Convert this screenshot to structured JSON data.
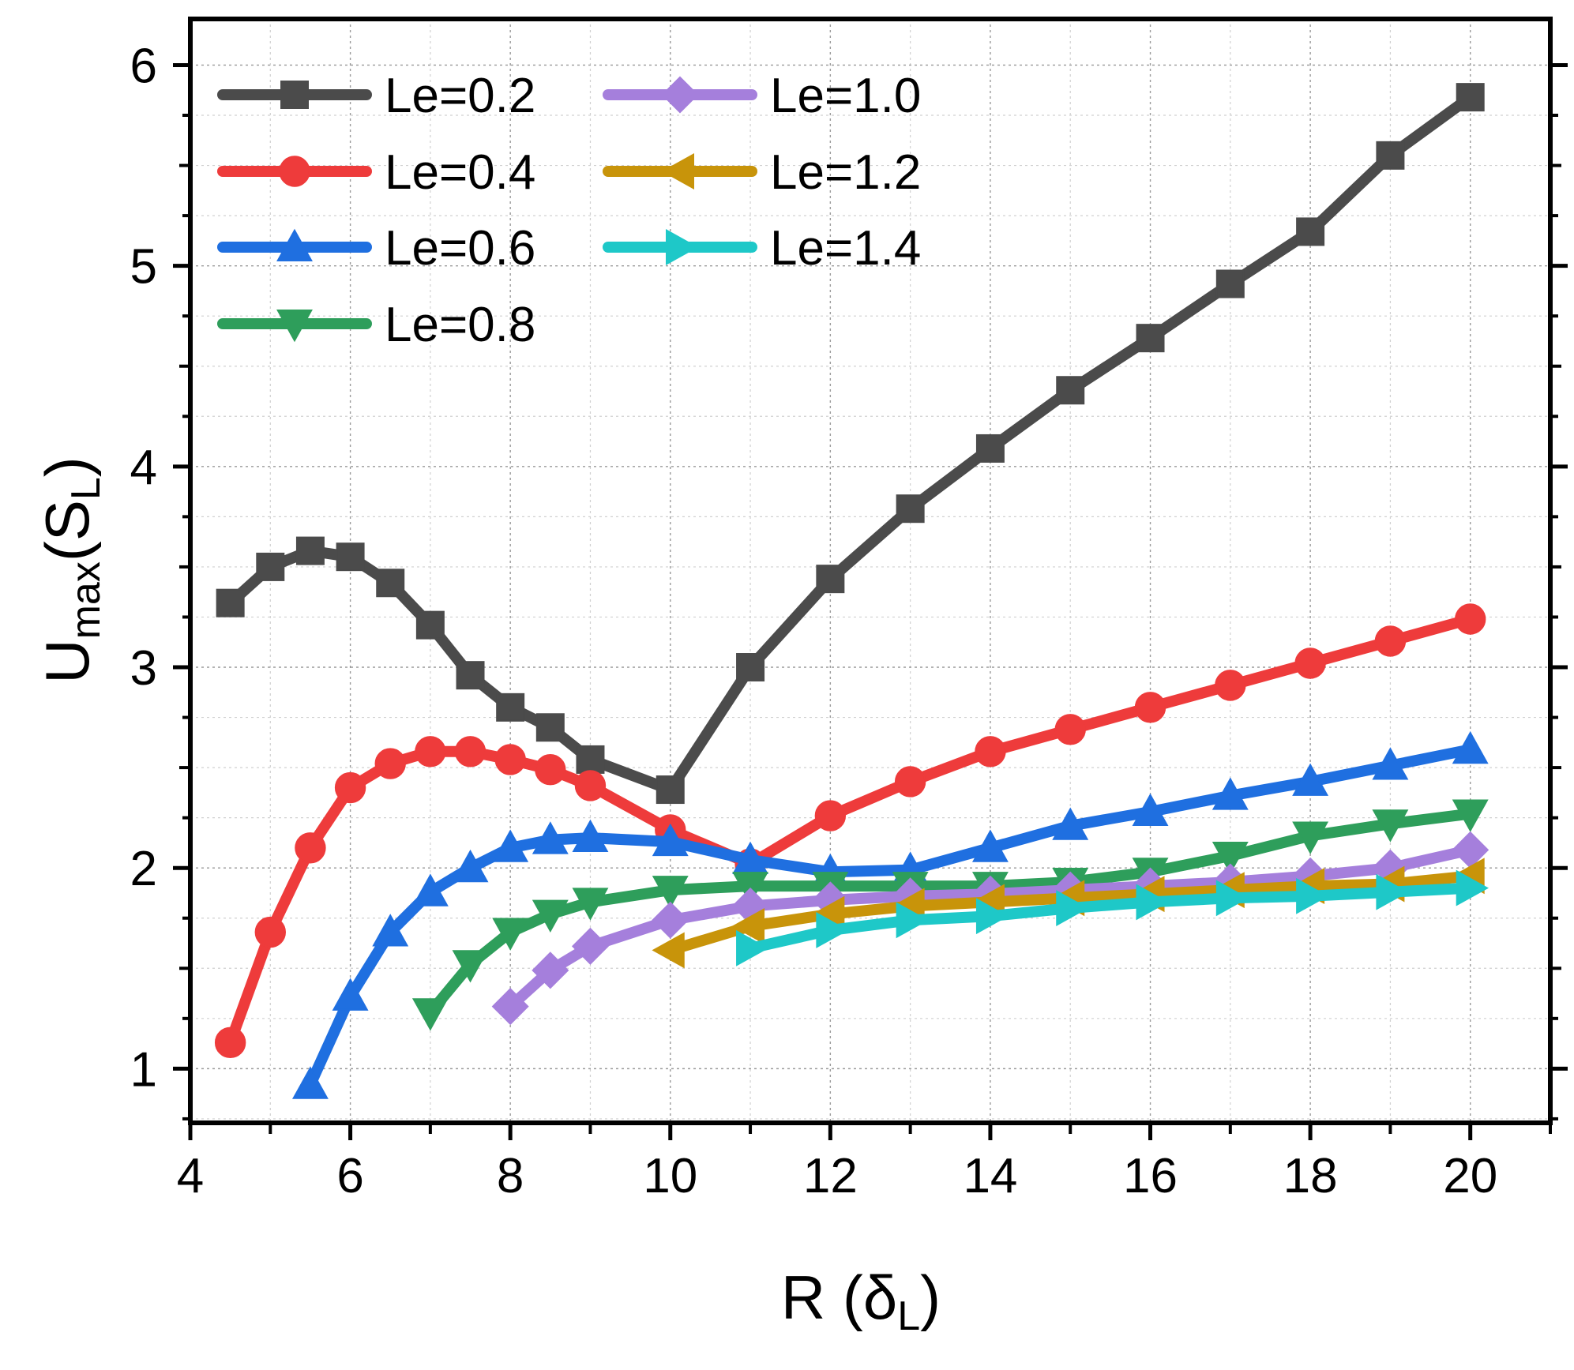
{
  "chart_data": {
    "type": "line",
    "title": "",
    "xlabel": {
      "main": "R (δ",
      "sub": "L",
      "close": ")"
    },
    "ylabel": {
      "main": "U",
      "sub1": "max",
      "mid": "(S",
      "sub2": "L",
      "close": ")"
    },
    "xlim": [
      4,
      21
    ],
    "ylim": [
      0.73,
      6.23
    ],
    "xticks": [
      4,
      6,
      8,
      10,
      12,
      14,
      16,
      18,
      20
    ],
    "yticks": [
      1,
      2,
      3,
      4,
      5,
      6
    ],
    "grid": true,
    "legend_position": "top-left",
    "series": [
      {
        "name": "Le=0.2",
        "color": "#4b4b4b",
        "marker": "square",
        "x": [
          4.5,
          5,
          5.5,
          6,
          6.5,
          7,
          7.5,
          8,
          8.5,
          9,
          10,
          11,
          12,
          13,
          14,
          15,
          16,
          17,
          18,
          19,
          20
        ],
        "y": [
          3.32,
          3.5,
          3.58,
          3.55,
          3.42,
          3.21,
          2.96,
          2.8,
          2.7,
          2.54,
          2.39,
          3.0,
          3.44,
          3.79,
          4.09,
          4.38,
          4.64,
          4.91,
          5.17,
          5.55,
          5.84
        ]
      },
      {
        "name": "Le=0.4",
        "color": "#ee3b3b",
        "marker": "circle",
        "x": [
          4.5,
          5,
          5.5,
          6,
          6.5,
          7,
          7.5,
          8,
          8.5,
          9,
          10,
          11,
          12,
          13,
          14,
          15,
          16,
          17,
          18,
          19,
          20
        ],
        "y": [
          1.13,
          1.68,
          2.1,
          2.4,
          2.52,
          2.58,
          2.58,
          2.54,
          2.49,
          2.41,
          2.19,
          2.02,
          2.26,
          2.43,
          2.58,
          2.69,
          2.8,
          2.91,
          3.02,
          3.13,
          3.24
        ]
      },
      {
        "name": "Le=0.6",
        "color": "#1f6fe0",
        "marker": "triangle-up",
        "x": [
          5.5,
          6,
          6.5,
          7,
          7.5,
          8,
          8.5,
          9,
          10,
          11,
          12,
          13,
          14,
          15,
          16,
          17,
          18,
          19,
          20
        ],
        "y": [
          0.92,
          1.36,
          1.68,
          1.88,
          2.0,
          2.1,
          2.14,
          2.15,
          2.13,
          2.04,
          1.98,
          1.99,
          2.1,
          2.21,
          2.28,
          2.36,
          2.43,
          2.51,
          2.59
        ]
      },
      {
        "name": "Le=0.8",
        "color": "#2e9e5b",
        "marker": "triangle-down",
        "x": [
          7,
          7.5,
          8,
          8.5,
          9,
          10,
          11,
          12,
          13,
          14,
          15,
          16,
          17,
          18,
          19,
          20
        ],
        "y": [
          1.28,
          1.52,
          1.68,
          1.77,
          1.83,
          1.89,
          1.91,
          1.91,
          1.91,
          1.91,
          1.93,
          1.98,
          2.06,
          2.16,
          2.22,
          2.27
        ]
      },
      {
        "name": "Le=1.0",
        "color": "#a57fdc",
        "marker": "diamond",
        "x": [
          8,
          8.5,
          9,
          10,
          11,
          12,
          13,
          14,
          15,
          16,
          17,
          18,
          19,
          20
        ],
        "y": [
          1.31,
          1.49,
          1.61,
          1.74,
          1.81,
          1.84,
          1.86,
          1.87,
          1.89,
          1.91,
          1.93,
          1.96,
          2.0,
          2.09
        ]
      },
      {
        "name": "Le=1.2",
        "color": "#c8940a",
        "marker": "triangle-left",
        "x": [
          10,
          11,
          12,
          13,
          14,
          15,
          16,
          17,
          18,
          19,
          20
        ],
        "y": [
          1.59,
          1.71,
          1.77,
          1.81,
          1.83,
          1.85,
          1.87,
          1.89,
          1.91,
          1.92,
          1.96
        ]
      },
      {
        "name": "Le=1.4",
        "color": "#1ec8c8",
        "marker": "triangle-right",
        "x": [
          11,
          12,
          13,
          14,
          15,
          16,
          17,
          18,
          19,
          20
        ],
        "y": [
          1.6,
          1.69,
          1.74,
          1.76,
          1.8,
          1.83,
          1.85,
          1.86,
          1.88,
          1.9
        ]
      }
    ]
  }
}
